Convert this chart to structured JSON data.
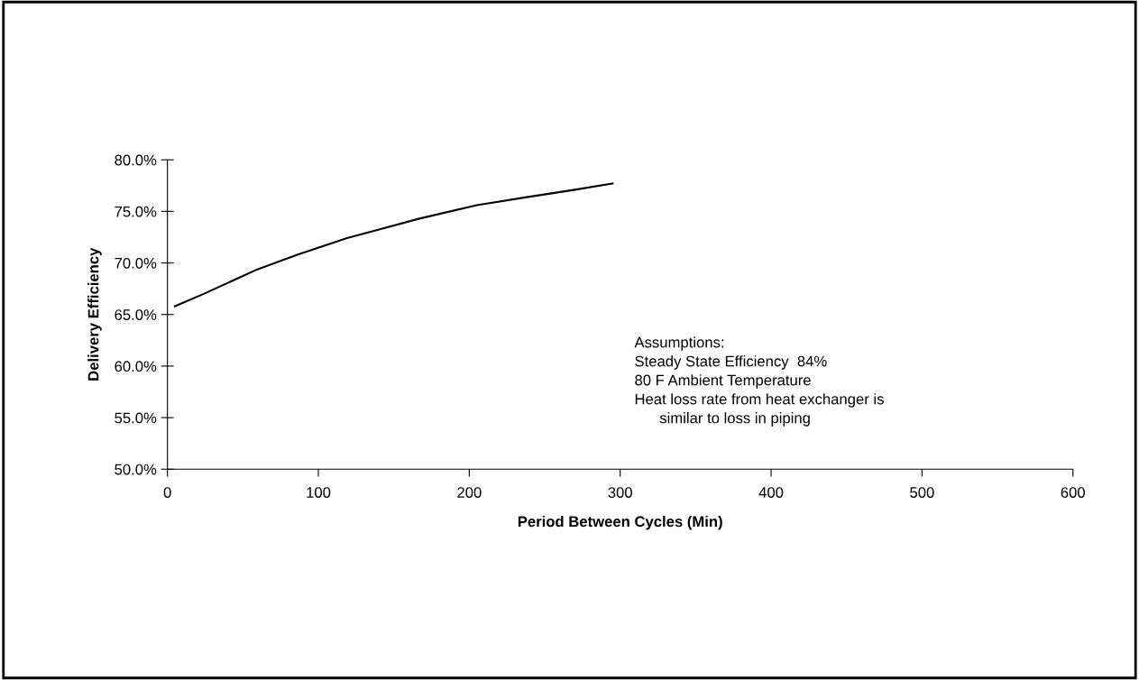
{
  "chart_data": {
    "type": "line",
    "xlabel": "Period Between Cycles (Min)",
    "ylabel": "Delivery Efficiency",
    "x": [
      5,
      24,
      60,
      86,
      119,
      167,
      205,
      239,
      270,
      295
    ],
    "series": [
      {
        "color": "#000000",
        "values": [
          65.8,
          67.0,
          69.4,
          70.8,
          72.4,
          74.3,
          75.6,
          76.4,
          77.1,
          77.7
        ]
      }
    ],
    "xlim": [
      0,
      600
    ],
    "xticks": [
      0,
      100,
      200,
      300,
      400,
      500,
      600
    ],
    "ylim": [
      50,
      80
    ],
    "yticks": [
      {
        "value": 50,
        "label": "50.0%"
      },
      {
        "value": 55,
        "label": "55.0%"
      },
      {
        "value": 60,
        "label": "60.0%"
      },
      {
        "value": 65,
        "label": "65.0%"
      },
      {
        "value": 70,
        "label": "70.0%"
      },
      {
        "value": 75,
        "label": "75.0%"
      },
      {
        "value": 80,
        "label": "80.0%"
      }
    ],
    "grid": false,
    "marker": "none",
    "line_style": "solid",
    "annotations": [
      {
        "text": "Assumptions:\nSteady State Efficiency  84%\n80 F Ambient Temperature\nHeat loss rate from heat exchanger is\n      similar to loss in piping"
      }
    ]
  }
}
